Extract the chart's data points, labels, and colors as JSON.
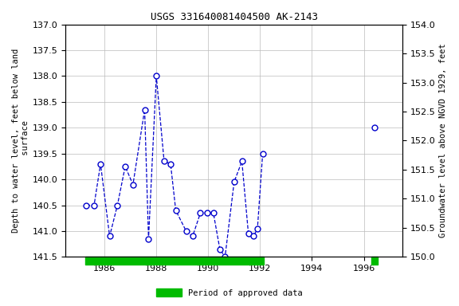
{
  "title": "USGS 331640081404500 AK-2143",
  "ylabel_left": "Depth to water level, feet below land\n surface",
  "ylabel_right": "Groundwater level above NGVD 1929, feet",
  "xlim": [
    1984.5,
    1997.5
  ],
  "ylim_left": [
    141.5,
    137.0
  ],
  "ylim_right": [
    150.0,
    154.0
  ],
  "yticks_left": [
    137.0,
    137.5,
    138.0,
    138.5,
    139.0,
    139.5,
    140.0,
    140.5,
    141.0,
    141.5
  ],
  "yticks_right": [
    150.0,
    150.5,
    151.0,
    151.5,
    152.0,
    152.5,
    153.0,
    153.5,
    154.0
  ],
  "xticks": [
    1986,
    1988,
    1990,
    1992,
    1994,
    1996
  ],
  "segments": [
    {
      "x": [
        1985.3,
        1985.6,
        1985.85,
        1986.2,
        1986.5,
        1986.8,
        1987.1,
        1987.55,
        1987.7,
        1988.0,
        1988.3,
        1988.55,
        1988.75,
        1989.15,
        1989.4,
        1989.7,
        1989.95,
        1990.2,
        1990.45,
        1990.65,
        1991.0,
        1991.3,
        1991.55,
        1991.75,
        1991.9,
        1992.1
      ],
      "y": [
        140.5,
        140.5,
        139.7,
        141.1,
        140.5,
        139.75,
        140.1,
        138.65,
        141.15,
        138.0,
        139.65,
        139.7,
        140.6,
        141.0,
        141.1,
        140.65,
        140.65,
        140.65,
        141.35,
        141.5,
        140.05,
        139.65,
        141.05,
        141.1,
        140.95,
        139.5
      ]
    },
    {
      "x": [
        1996.4
      ],
      "y": [
        139.0
      ]
    }
  ],
  "line_color": "#0000cc",
  "marker_color": "#0000cc",
  "marker_face": "white",
  "approved_bar_color": "#00bb00",
  "approved_ranges": [
    [
      1985.25,
      1992.15
    ]
  ],
  "approved_ranges2": [
    [
      1996.3,
      1996.55
    ]
  ],
  "background_color": "#ffffff",
  "plot_bg_color": "#ffffff",
  "grid_color": "#bbbbbb",
  "title_fontsize": 9,
  "label_fontsize": 7.5,
  "tick_fontsize": 8,
  "legend_label": "Period of approved data",
  "legend_color": "#00bb00"
}
